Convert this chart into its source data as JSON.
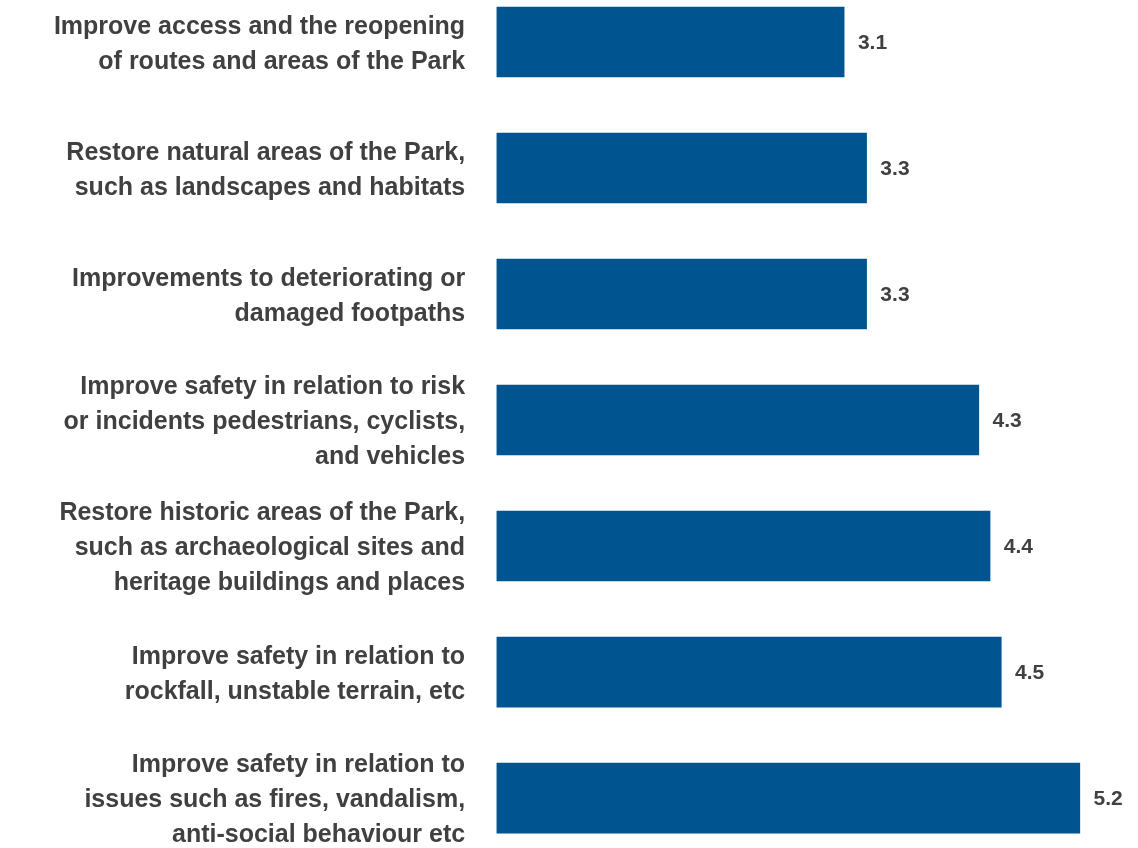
{
  "chart_data": {
    "type": "bar",
    "orientation": "horizontal",
    "data_labels": true,
    "color": "#00548f",
    "categories": [
      "Improve access and the reopening\nof routes and areas of the Park",
      "Restore natural areas of the Park,\nsuch as landscapes and habitats",
      "Improvements to deteriorating or\ndamaged footpaths",
      "Improve safety in relation to risk\nor incidents pedestrians, cyclists,\nand vehicles",
      "Restore historic areas of the Park,\nsuch as archaeological sites and\nheritage buildings and places",
      "Improve safety in relation to\nrockfall, unstable terrain, etc",
      "Improve safety in relation to\nissues such as fires, vandalism,\nanti-social behaviour etc"
    ],
    "values": [
      3.1,
      3.3,
      3.3,
      4.3,
      4.4,
      4.5,
      5.2
    ]
  }
}
